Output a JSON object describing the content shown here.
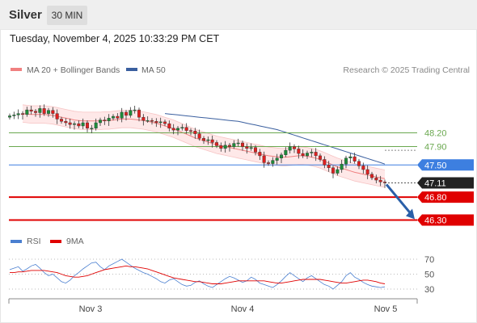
{
  "header": {
    "symbol": "Silver",
    "timeframe": "30 MIN"
  },
  "datetime": "Tuesday, November 4, 2025 10:33:29 PM CET",
  "legend": {
    "ma20": "MA 20 + Bollinger Bands",
    "ma50": "MA 50",
    "credit": "Research © 2025 Trading Central"
  },
  "rsi_legend": {
    "rsi": "RSI",
    "ma": "9MA"
  },
  "colors": {
    "support": "#e00000",
    "resistance": "#6aa84f",
    "pivot": "#3d7fe0",
    "ma20": "#f08080",
    "ma50": "#3a5f9f",
    "bull": "#1e8c3a",
    "bear": "#e02020",
    "rsi": "#4a7fd0",
    "arrow": "#2a5fa8"
  },
  "chart_data": [
    {
      "type": "candlestick",
      "x_labels": [
        "Nov 3",
        "Nov 4",
        "Nov 5"
      ],
      "ylim": [
        46.1,
        48.8
      ],
      "levels": [
        {
          "value": 48.2,
          "label": "48.20",
          "kind": "resistance"
        },
        {
          "value": 47.9,
          "label": "47.90",
          "kind": "resistance"
        },
        {
          "value": 47.5,
          "label": "47.50",
          "kind": "pivot"
        },
        {
          "value": 46.8,
          "label": "46.80",
          "kind": "support"
        },
        {
          "value": 46.3,
          "label": "46.30",
          "kind": "support"
        }
      ],
      "last_price": {
        "value": 47.11,
        "label": "47.11"
      },
      "forecast_arrow": {
        "from": 47.11,
        "to": 46.3
      },
      "closes": [
        48.57,
        48.59,
        48.62,
        48.6,
        48.7,
        48.67,
        48.64,
        48.73,
        48.62,
        48.69,
        48.62,
        48.5,
        48.45,
        48.42,
        48.38,
        48.4,
        48.35,
        48.42,
        48.3,
        48.3,
        48.42,
        48.48,
        48.46,
        48.52,
        48.56,
        48.52,
        48.65,
        48.58,
        48.69,
        48.7,
        48.54,
        48.47,
        48.47,
        48.45,
        48.42,
        48.44,
        48.4,
        48.3,
        48.26,
        48.3,
        48.32,
        48.25,
        48.24,
        48.18,
        48.08,
        48.03,
        48.05,
        47.99,
        47.92,
        47.86,
        47.93,
        47.9,
        47.97,
        47.98,
        47.9,
        47.86,
        47.88,
        47.78,
        47.7,
        47.55,
        47.53,
        47.6,
        47.65,
        47.72,
        47.82,
        47.9,
        47.85,
        47.75,
        47.7,
        47.76,
        47.78,
        47.7,
        47.62,
        47.5,
        47.44,
        47.32,
        47.4,
        47.52,
        47.65,
        47.68,
        47.58,
        47.48,
        47.4,
        47.3,
        47.22,
        47.17,
        47.13,
        47.11
      ],
      "ma20": [
        48.62,
        48.61,
        48.6,
        48.6,
        48.6,
        48.6,
        48.59,
        48.58,
        48.56,
        48.54,
        48.52,
        48.5,
        48.48,
        48.47,
        48.46,
        48.46,
        48.46,
        48.46,
        48.46,
        48.47,
        48.47,
        48.48,
        48.49,
        48.5,
        48.5,
        48.5,
        48.49,
        48.48,
        48.47,
        48.45,
        48.43,
        48.41,
        48.38,
        48.35,
        48.32,
        48.29,
        48.25,
        48.21,
        48.17,
        48.13,
        48.09,
        48.06,
        48.03,
        48.0,
        47.97,
        47.94,
        47.92,
        47.9,
        47.88,
        47.86,
        47.84,
        47.82,
        47.8,
        47.78,
        47.76,
        47.74,
        47.72,
        47.7,
        47.69,
        47.68,
        47.67,
        47.67,
        47.68,
        47.69,
        47.7,
        47.7,
        47.69,
        47.67,
        47.65,
        47.62,
        47.58,
        47.54,
        47.5,
        47.46,
        47.43,
        47.4,
        47.37,
        47.34,
        47.32,
        47.3,
        47.28,
        47.26,
        47.24,
        47.22,
        47.2
      ],
      "ma20_start_index": 3,
      "ma50": [
        48.62,
        48.61,
        48.6,
        48.59,
        48.58,
        48.57,
        48.56,
        48.55,
        48.54,
        48.53,
        48.52,
        48.51,
        48.5,
        48.49,
        48.48,
        48.47,
        48.46,
        48.45,
        48.43,
        48.41,
        48.39,
        48.37,
        48.35,
        48.33,
        48.31,
        48.29,
        48.27,
        48.24,
        48.21,
        48.18,
        48.15,
        48.12,
        48.09,
        48.06,
        48.03,
        48.0,
        47.97,
        47.94,
        47.91,
        47.88,
        47.85,
        47.82,
        47.79,
        47.76,
        47.73,
        47.7,
        47.67,
        47.64,
        47.61,
        47.58,
        47.55,
        47.52
      ],
      "ma50_start_index": 36
    },
    {
      "type": "line",
      "title": "RSI",
      "ylim": [
        25,
        75
      ],
      "ticks": [
        70,
        50,
        30
      ],
      "rsi": [
        56,
        58,
        60,
        54,
        57,
        61,
        63,
        58,
        52,
        48,
        50,
        45,
        40,
        38,
        42,
        48,
        52,
        57,
        61,
        65,
        66,
        60,
        56,
        61,
        64,
        67,
        70,
        66,
        62,
        58,
        55,
        52,
        50,
        47,
        44,
        40,
        38,
        42,
        44,
        40,
        36,
        34,
        35,
        39,
        41,
        37,
        34,
        32,
        36,
        40,
        44,
        47,
        45,
        42,
        39,
        41,
        46,
        43,
        38,
        36,
        34,
        32,
        36,
        41,
        47,
        52,
        48,
        44,
        40,
        45,
        48,
        44,
        40,
        36,
        34,
        30,
        35,
        40,
        48,
        52,
        46,
        43,
        39,
        36,
        34,
        33,
        32,
        33
      ],
      "ma9": [
        52,
        52,
        53,
        53,
        54,
        55,
        55,
        55,
        55,
        54,
        53,
        52,
        50,
        48,
        47,
        46,
        46,
        47,
        48,
        50,
        52,
        54,
        56,
        57,
        58,
        59,
        60,
        61,
        60,
        60,
        59,
        58,
        57,
        55,
        53,
        51,
        49,
        47,
        45,
        44,
        43,
        42,
        41,
        40,
        40,
        39,
        38,
        37,
        37,
        37,
        38,
        39,
        40,
        41,
        41,
        41,
        41,
        41,
        41,
        41,
        40,
        39,
        38,
        38,
        39,
        40,
        41,
        42,
        43,
        43,
        43,
        43,
        43,
        42,
        41,
        40,
        39,
        38,
        38,
        39,
        40,
        41,
        42,
        42,
        41,
        40,
        38,
        37
      ]
    }
  ]
}
